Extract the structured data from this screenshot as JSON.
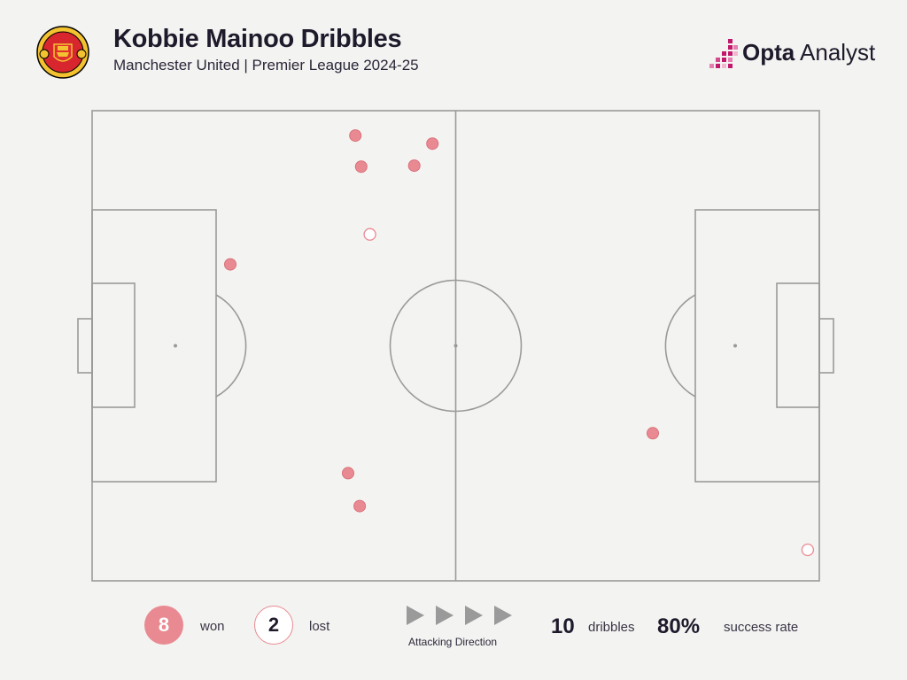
{
  "header": {
    "title": "Kobbie Mainoo Dribbles",
    "subtitle": "Manchester United | Premier League 2024-25",
    "crest_text_top": "MANCHESTER",
    "crest_text_bottom": "UNITED",
    "brand_bold": "Opta",
    "brand_rest": " Analyst"
  },
  "colors": {
    "won": "#e98a92",
    "lost_stroke": "#e98a92",
    "pitch_line": "#9a9a9a",
    "background": "#f3f3f1",
    "brand_accent": "#c2186b"
  },
  "chart_data": {
    "type": "scatter",
    "pitch_length": 100,
    "pitch_width": 100,
    "attacking_direction": "left-to-right",
    "legend_placement": "bottom",
    "series": [
      {
        "name": "won",
        "points": [
          {
            "x": 36.2,
            "y": 94.7
          },
          {
            "x": 46.8,
            "y": 93.0
          },
          {
            "x": 37.0,
            "y": 88.1
          },
          {
            "x": 44.3,
            "y": 88.3
          },
          {
            "x": 19.0,
            "y": 67.3
          },
          {
            "x": 77.1,
            "y": 31.4
          },
          {
            "x": 35.2,
            "y": 22.9
          },
          {
            "x": 36.8,
            "y": 15.9
          }
        ]
      },
      {
        "name": "lost",
        "points": [
          {
            "x": 38.2,
            "y": 73.7
          },
          {
            "x": 98.4,
            "y": 6.6
          }
        ]
      }
    ]
  },
  "footer": {
    "won_count": "8",
    "won_label": "won",
    "lost_count": "2",
    "lost_label": "lost",
    "direction_label": "Attacking Direction",
    "dribbles_count": "10",
    "dribbles_label": "dribbles",
    "success_rate": "80%",
    "success_label": "success rate"
  }
}
